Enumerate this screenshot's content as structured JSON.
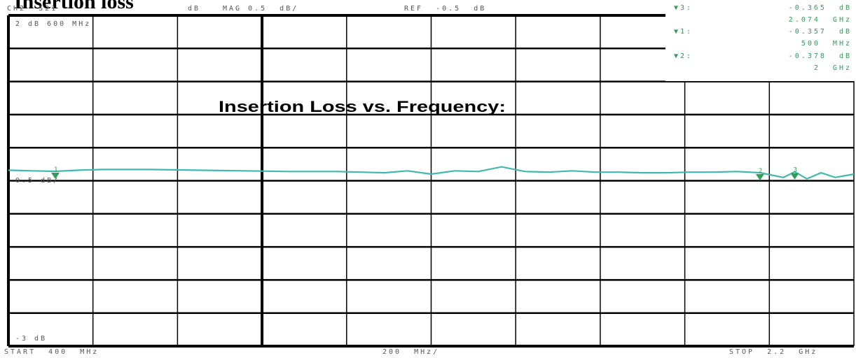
{
  "page_title": "Insertion loss",
  "header": {
    "channel": "CH2  S21",
    "format_unit": "dB",
    "scale": "MAG 0.5  dB/",
    "reference": "REF  -0.5  dB"
  },
  "markers": [
    {
      "symbol": "▼",
      "id": "3:",
      "value": "-0.365  dB",
      "freq": "2.074  GHz"
    },
    {
      "symbol": "▼",
      "id": "1:",
      "value": "-0.357  dB",
      "freq": "500  MHz"
    },
    {
      "symbol": "▼",
      "id": "2:",
      "value": "-0.378  dB",
      "freq": "2  GHz"
    }
  ],
  "footer": {
    "start": "START  400  MHz",
    "span_per_div": "200  MHz/",
    "stop": "STOP  2.2  GHz"
  },
  "colors": {
    "trace": "#3fb8b0",
    "marker": "#2e9e58",
    "grid": "#000000",
    "text": "#555555"
  },
  "chart_data": {
    "type": "line",
    "title": "Insertion Loss vs. Frequency:",
    "xlabel": "",
    "ylabel": "",
    "x_unit": "GHz",
    "y_unit": "dB",
    "xlim": [
      0.4,
      2.2
    ],
    "ylim": [
      -3.0,
      2.0
    ],
    "grid": true,
    "corner_labels": {
      "top": "2  dB 600  MHz",
      "ref": "0.5  dB/",
      "bottom": "-3  dB"
    },
    "series": [
      {
        "name": "",
        "x": [
          0.4,
          0.45,
          0.5,
          0.55,
          0.6,
          0.7,
          0.8,
          0.9,
          1.0,
          1.1,
          1.15,
          1.2,
          1.25,
          1.3,
          1.35,
          1.4,
          1.45,
          1.5,
          1.55,
          1.6,
          1.65,
          1.7,
          1.75,
          1.8,
          1.85,
          1.9,
          1.95,
          2.0,
          2.05,
          2.074,
          2.1,
          2.13,
          2.16,
          2.2
        ],
        "y": [
          -0.34,
          -0.35,
          -0.357,
          -0.34,
          -0.33,
          -0.33,
          -0.34,
          -0.35,
          -0.36,
          -0.36,
          -0.37,
          -0.38,
          -0.35,
          -0.4,
          -0.35,
          -0.36,
          -0.29,
          -0.36,
          -0.37,
          -0.35,
          -0.37,
          -0.37,
          -0.38,
          -0.38,
          -0.37,
          -0.37,
          -0.36,
          -0.378,
          -0.45,
          -0.365,
          -0.47,
          -0.38,
          -0.45,
          -0.4
        ]
      }
    ],
    "marker_points": [
      {
        "id": "1",
        "x": 0.5,
        "y": -0.357
      },
      {
        "id": "2",
        "x": 2.0,
        "y": -0.378
      },
      {
        "id": "3",
        "x": 2.074,
        "y": -0.365
      }
    ]
  }
}
